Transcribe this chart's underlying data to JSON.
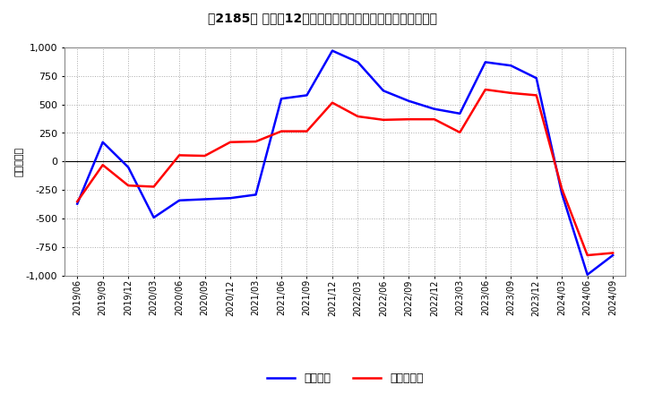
{
  "title": "[ↅ] 利益だ12か月移動合計の対前年同期増減額の推移",
  "title_bracket": "［2185］",
  "title_main": " 利益だ12か月移動合計の対前年同期増減額の推移",
  "ylabel": "（百万円）",
  "background_color": "#ffffff",
  "plot_bg_color": "#ffffff",
  "grid_color": "#aaaaaa",
  "ylim": [
    -1000,
    1000
  ],
  "yticks": [
    -1000,
    -750,
    -500,
    -250,
    0,
    250,
    500,
    750,
    1000
  ],
  "x_labels": [
    "2019/06",
    "2019/09",
    "2019/12",
    "2020/03",
    "2020/06",
    "2020/09",
    "2020/12",
    "2021/03",
    "2021/06",
    "2021/09",
    "2021/12",
    "2022/03",
    "2022/06",
    "2022/09",
    "2022/12",
    "2023/03",
    "2023/06",
    "2023/09",
    "2023/12",
    "2024/03",
    "2024/06",
    "2024/09"
  ],
  "keijo_rieki": [
    -370,
    170,
    -50,
    -490,
    -340,
    -330,
    -320,
    -290,
    550,
    580,
    970,
    870,
    620,
    530,
    460,
    420,
    870,
    840,
    730,
    -280,
    -990,
    -820
  ],
  "touki_junrieki": [
    -350,
    -30,
    -210,
    -220,
    55,
    50,
    170,
    175,
    265,
    265,
    515,
    395,
    365,
    370,
    370,
    255,
    630,
    600,
    580,
    -240,
    -820,
    -800
  ],
  "line_color_keijo": "#0000ff",
  "line_color_touki": "#ff0000",
  "line_width": 1.8,
  "legend_label_keijo": "経常利益",
  "legend_label_touki": "当期純利益"
}
